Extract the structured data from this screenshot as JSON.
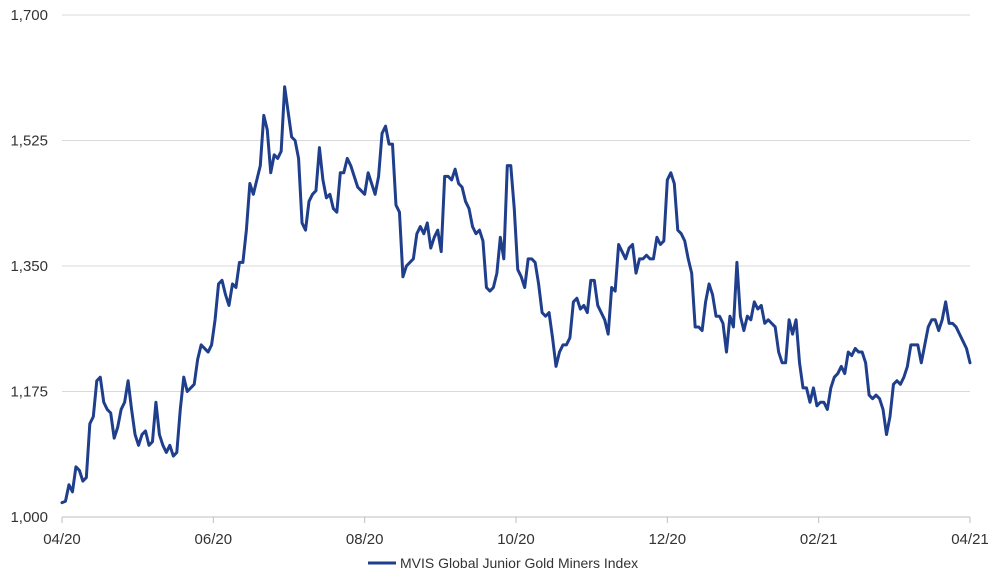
{
  "chart_data": {
    "type": "line",
    "title": "",
    "xlabel": "",
    "ylabel": "",
    "ylim": [
      1000,
      1700
    ],
    "y_ticks": [
      "1,000",
      "1,175",
      "1,350",
      "1,525",
      "1,700"
    ],
    "y_tick_values": [
      1000,
      1175,
      1350,
      1525,
      1700
    ],
    "x_ticks": [
      "04/20",
      "06/20",
      "08/20",
      "10/20",
      "12/20",
      "02/21",
      "04/21"
    ],
    "grid": "horizontal",
    "legend_position": "bottom",
    "series": [
      {
        "name": "MVIS Global Junior Gold Miners Index",
        "color": "#1f3f8c",
        "values": [
          1020,
          1022,
          1045,
          1035,
          1070,
          1065,
          1050,
          1055,
          1130,
          1140,
          1190,
          1195,
          1160,
          1150,
          1145,
          1110,
          1125,
          1150,
          1160,
          1190,
          1150,
          1115,
          1100,
          1115,
          1120,
          1100,
          1105,
          1160,
          1115,
          1100,
          1090,
          1100,
          1085,
          1090,
          1150,
          1195,
          1175,
          1180,
          1185,
          1220,
          1240,
          1235,
          1230,
          1240,
          1275,
          1325,
          1330,
          1310,
          1295,
          1325,
          1320,
          1355,
          1355,
          1400,
          1465,
          1450,
          1470,
          1490,
          1560,
          1540,
          1480,
          1505,
          1500,
          1510,
          1600,
          1565,
          1530,
          1525,
          1500,
          1410,
          1400,
          1440,
          1450,
          1455,
          1515,
          1470,
          1445,
          1450,
          1430,
          1425,
          1480,
          1480,
          1500,
          1490,
          1475,
          1460,
          1455,
          1450,
          1480,
          1465,
          1450,
          1475,
          1535,
          1545,
          1520,
          1520,
          1435,
          1425,
          1335,
          1350,
          1355,
          1360,
          1395,
          1405,
          1395,
          1410,
          1375,
          1390,
          1400,
          1370,
          1475,
          1475,
          1470,
          1485,
          1465,
          1460,
          1440,
          1430,
          1405,
          1395,
          1400,
          1385,
          1320,
          1315,
          1320,
          1340,
          1390,
          1360,
          1490,
          1490,
          1430,
          1345,
          1335,
          1320,
          1360,
          1360,
          1355,
          1325,
          1285,
          1280,
          1285,
          1250,
          1210,
          1230,
          1240,
          1240,
          1250,
          1300,
          1305,
          1290,
          1295,
          1285,
          1330,
          1330,
          1295,
          1285,
          1275,
          1255,
          1320,
          1315,
          1380,
          1370,
          1360,
          1375,
          1380,
          1340,
          1360,
          1360,
          1365,
          1360,
          1360,
          1390,
          1380,
          1385,
          1470,
          1480,
          1465,
          1400,
          1395,
          1385,
          1360,
          1340,
          1265,
          1265,
          1260,
          1300,
          1325,
          1310,
          1280,
          1280,
          1270,
          1230,
          1280,
          1265,
          1355,
          1280,
          1260,
          1280,
          1275,
          1300,
          1290,
          1295,
          1270,
          1275,
          1270,
          1265,
          1230,
          1215,
          1215,
          1275,
          1255,
          1275,
          1215,
          1180,
          1180,
          1160,
          1180,
          1155,
          1160,
          1160,
          1150,
          1180,
          1195,
          1200,
          1210,
          1200,
          1230,
          1225,
          1235,
          1230,
          1230,
          1215,
          1170,
          1165,
          1170,
          1165,
          1150,
          1115,
          1140,
          1185,
          1190,
          1185,
          1195,
          1210,
          1240,
          1240,
          1240,
          1215,
          1240,
          1265,
          1275,
          1275,
          1260,
          1275,
          1300,
          1270,
          1270,
          1265,
          1255,
          1245,
          1235,
          1215
        ]
      }
    ]
  }
}
